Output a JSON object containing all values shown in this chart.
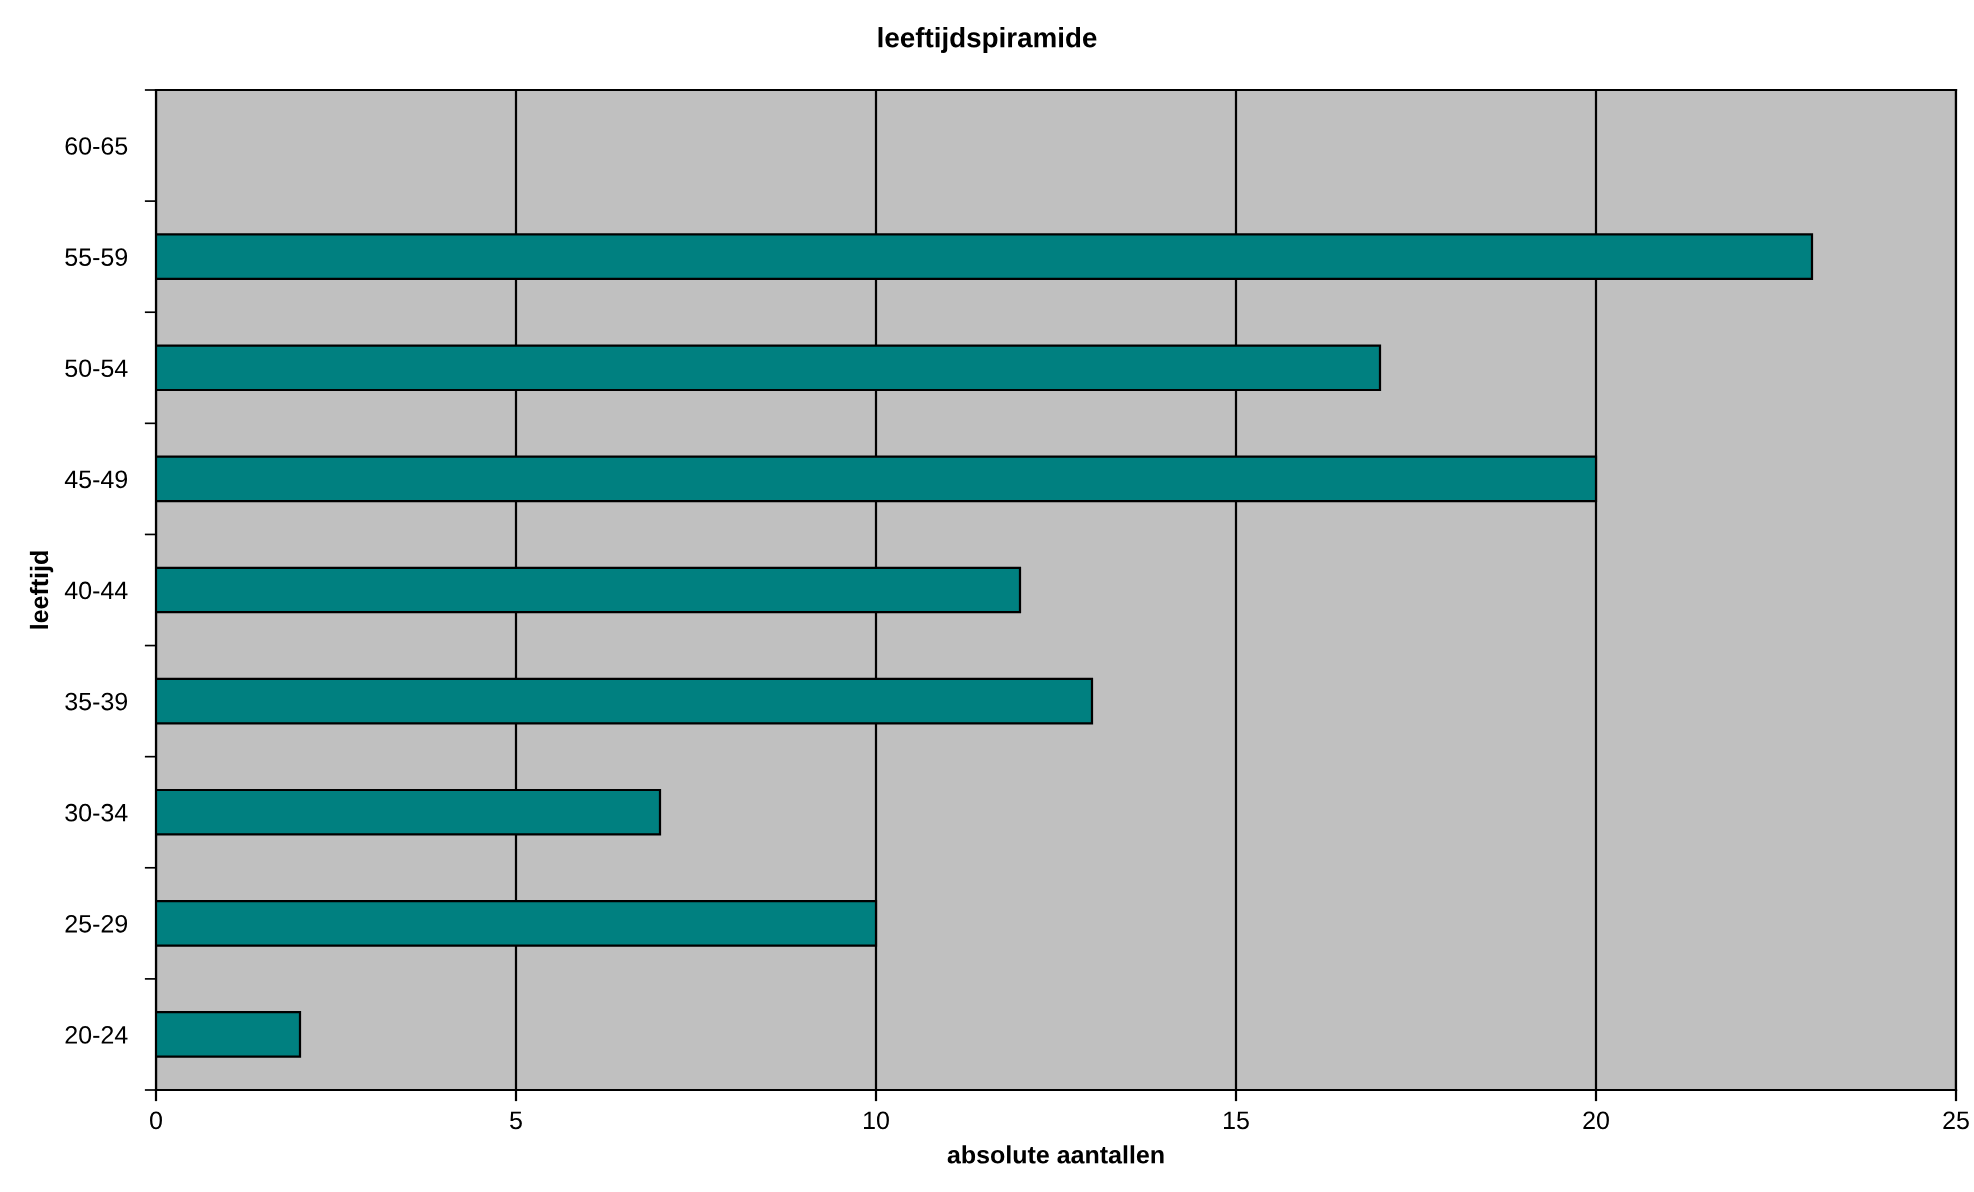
{
  "chart_data": {
    "type": "bar",
    "orientation": "horizontal",
    "title": "leeftijdspiramide",
    "xlabel": "absolute aantallen",
    "ylabel": "leeftijd",
    "categories": [
      "60-65",
      "55-59",
      "50-54",
      "45-49",
      "40-44",
      "35-39",
      "30-34",
      "25-29",
      "20-24"
    ],
    "values": [
      null,
      23,
      17,
      20,
      12,
      13,
      7,
      10,
      2
    ],
    "color": "#008080",
    "xlim": [
      0,
      25
    ],
    "xticks": [
      0,
      5,
      10,
      15,
      20,
      25
    ],
    "grid": "x",
    "legend": false
  }
}
